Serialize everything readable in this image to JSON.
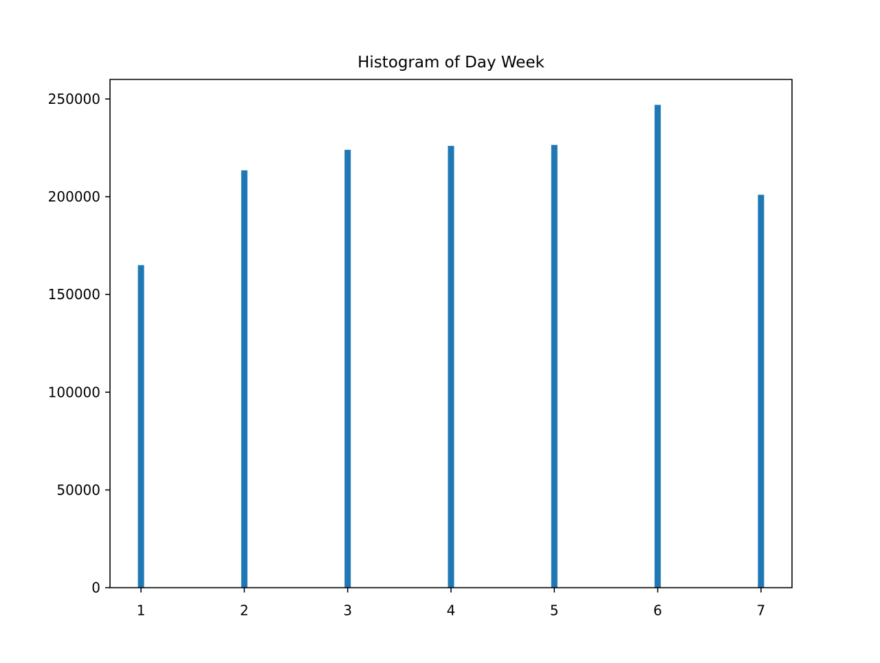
{
  "chart_data": {
    "type": "bar",
    "title": "Histogram of Day Week",
    "xlabel": "",
    "ylabel": "",
    "categories": [
      1,
      2,
      3,
      4,
      5,
      6,
      7
    ],
    "values": [
      165000,
      213500,
      224000,
      226000,
      226500,
      247000,
      201000
    ],
    "xlim": [
      0.7,
      7.3
    ],
    "ylim": [
      0,
      260000
    ],
    "x_ticks": [
      1,
      2,
      3,
      4,
      5,
      6,
      7
    ],
    "y_ticks": [
      0,
      50000,
      100000,
      150000,
      200000,
      250000
    ],
    "bar_width": 0.06,
    "grid": false,
    "legend": "none",
    "colors": {
      "bar": "#1f77b4",
      "axis": "#000000"
    }
  }
}
